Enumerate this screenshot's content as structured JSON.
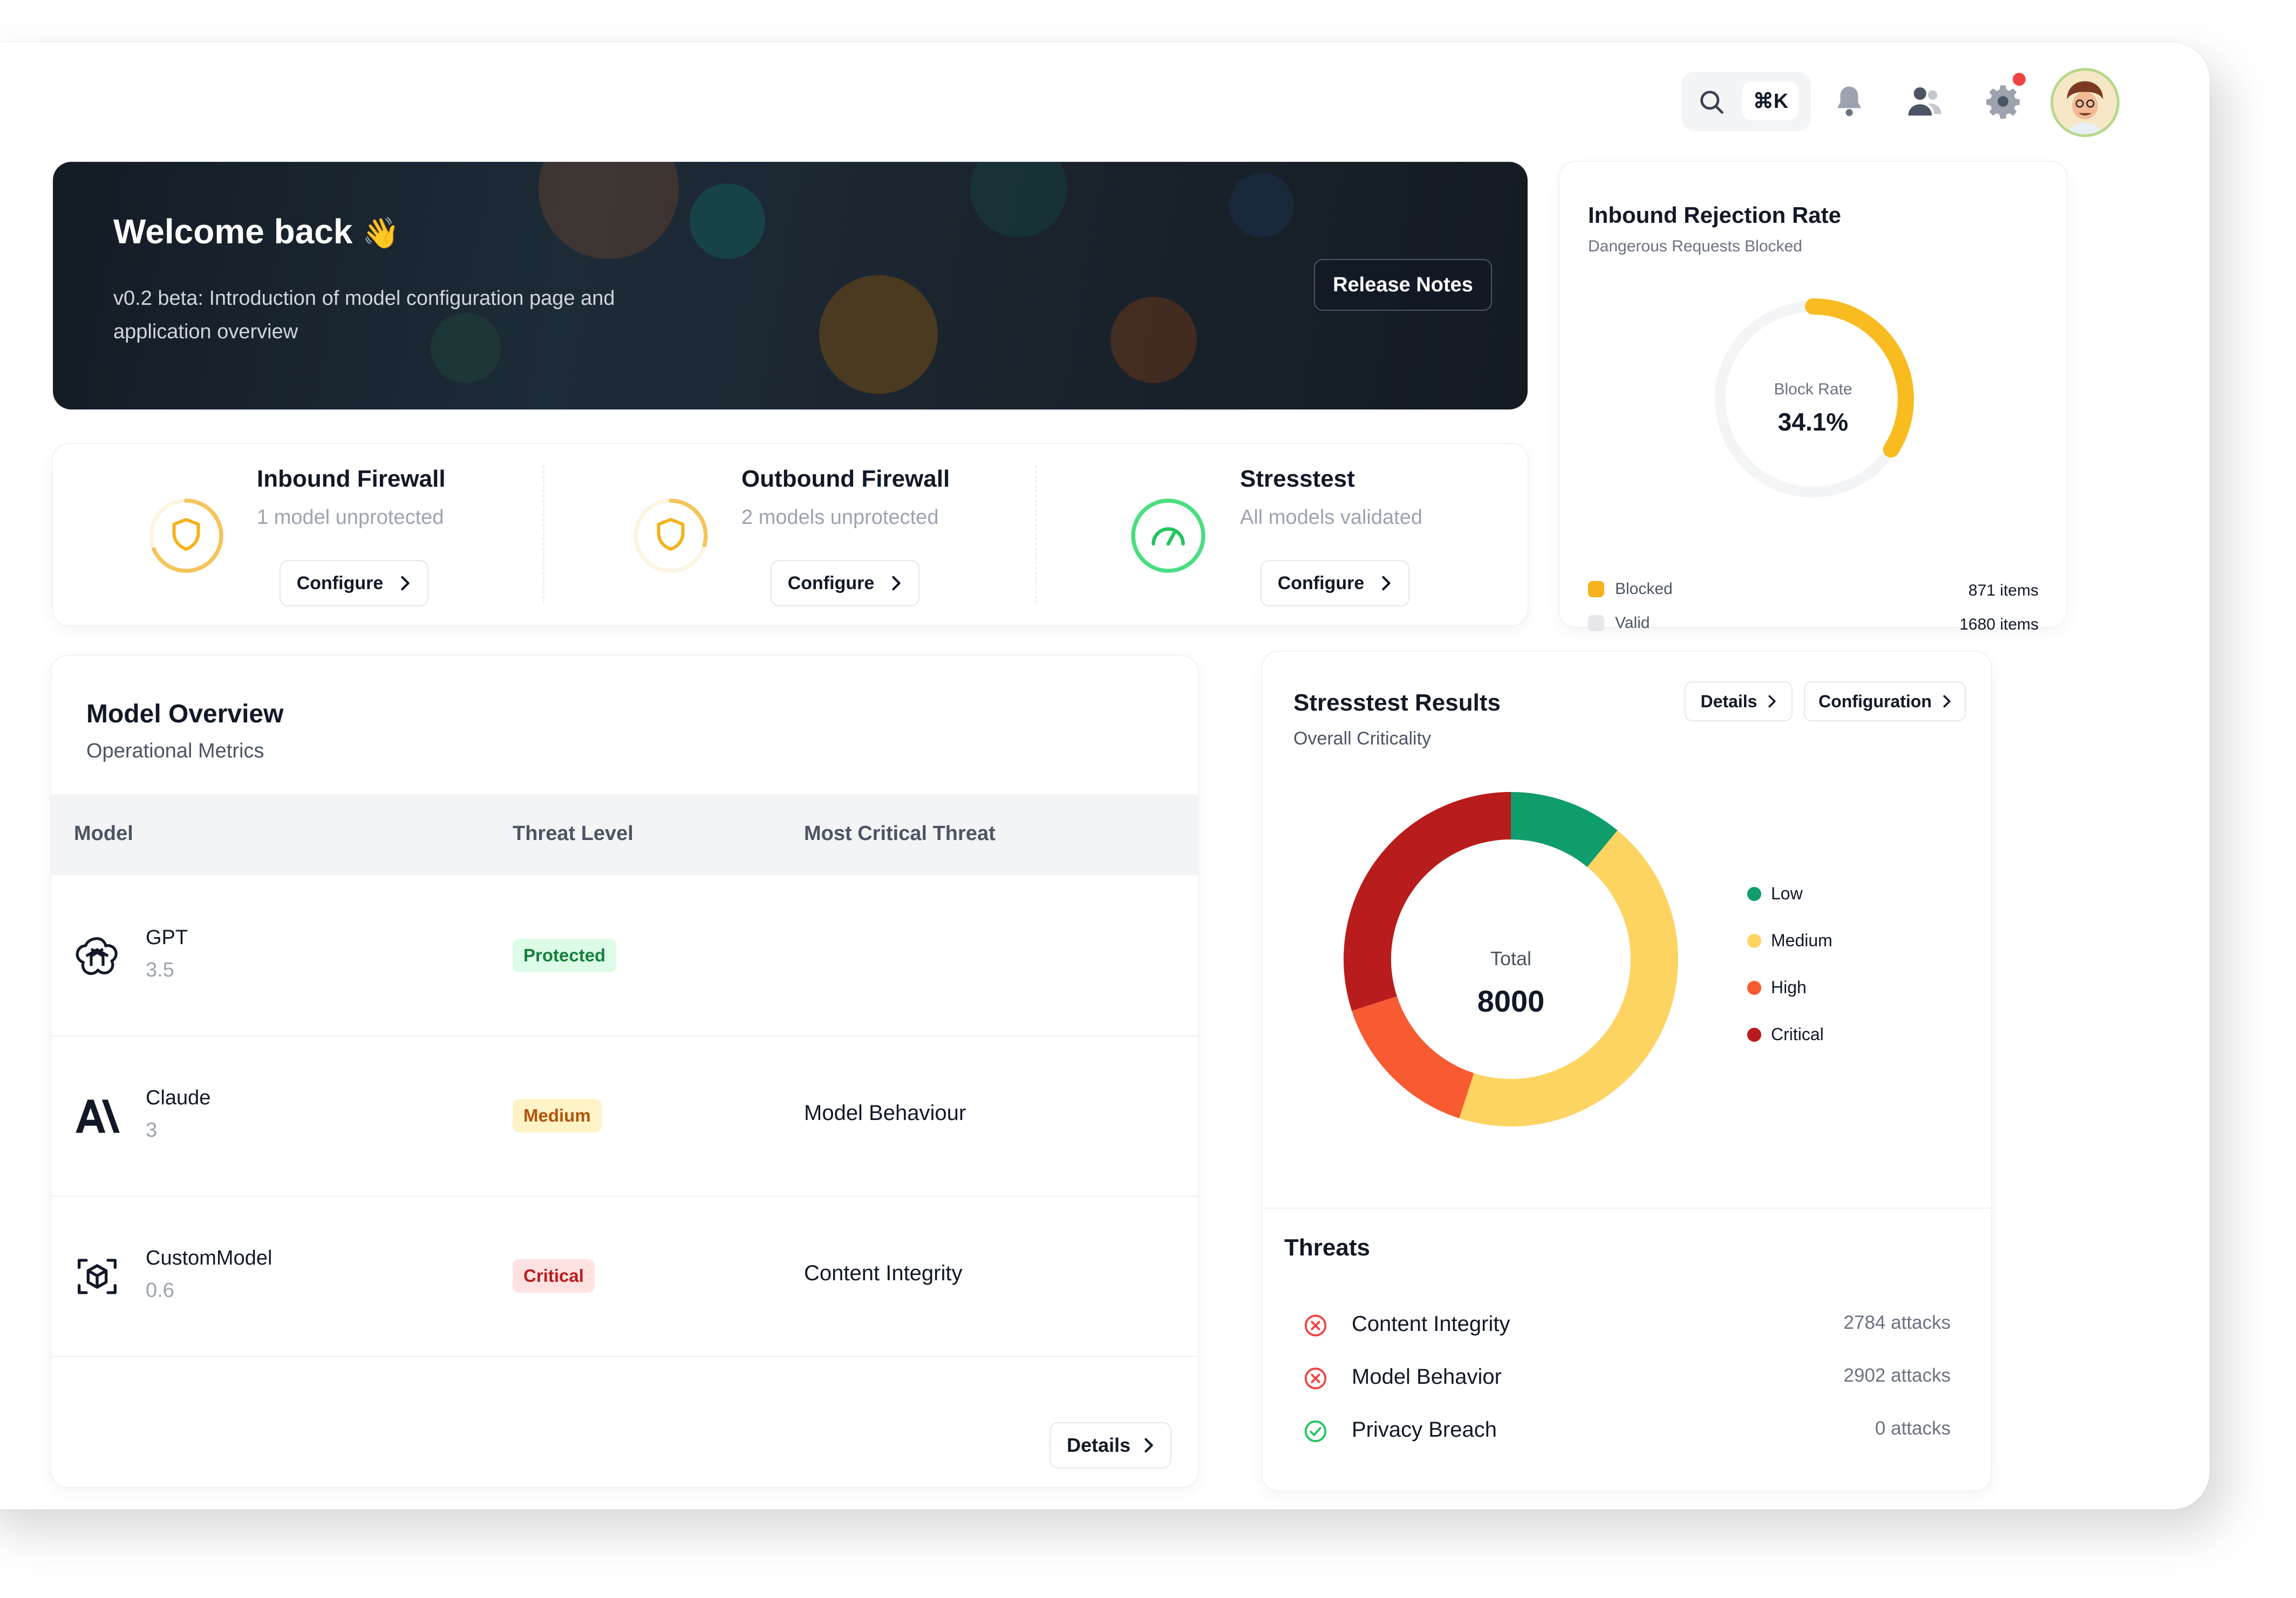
{
  "header": {
    "shortcut": "⌘K",
    "icons": [
      "search-icon",
      "bell-icon",
      "user-icon",
      "gear-icon"
    ]
  },
  "banner": {
    "title": "Welcome back",
    "emoji": "👋",
    "subtitle": "v0.2 beta: Introduction of model configuration page and application overview",
    "release_button": "Release Notes"
  },
  "firewalls": [
    {
      "title": "Inbound Firewall",
      "subtitle": "1 model unprotected",
      "button": "Configure",
      "status_color": "#f5b21a",
      "progress": 0.6
    },
    {
      "title": "Outbound Firewall",
      "subtitle": "2 models unprotected",
      "button": "Configure",
      "status_color": "#f5b21a",
      "progress": 0.35
    },
    {
      "title": "Stresstest",
      "subtitle": "All models validated",
      "button": "Configure",
      "status_color": "#22c55e",
      "progress": 1.0
    }
  ],
  "rejection": {
    "title": "Inbound Rejection Rate",
    "subtitle": "Dangerous Requests Blocked",
    "center_label": "Block Rate",
    "center_value": "34.1%",
    "rate": 0.341,
    "legend": [
      {
        "label": "Blocked",
        "value": "871 items",
        "color": "#f5b21a"
      },
      {
        "label": "Valid",
        "value": "1680 items",
        "color": "#e5e7eb"
      }
    ]
  },
  "model_overview": {
    "title": "Model Overview",
    "subtitle": "Operational Metrics",
    "columns": [
      "Model",
      "Threat Level",
      "Most Critical Threat"
    ],
    "rows": [
      {
        "name": "GPT",
        "version": "3.5",
        "threat_level": "Protected",
        "critical_threat": "",
        "logo": "openai-icon"
      },
      {
        "name": "Claude",
        "version": "3",
        "threat_level": "Medium",
        "critical_threat": "Model Behaviour",
        "logo": "anthropic-icon"
      },
      {
        "name": "CustomModel",
        "version": "0.6",
        "threat_level": "Critical",
        "critical_threat": "Content Integrity",
        "logo": "cube-icon"
      }
    ],
    "details_button": "Details"
  },
  "stresstest": {
    "title": "Stresstest Results",
    "subtitle": "Overall Criticality",
    "details_button": "Details",
    "config_button": "Configuration",
    "total_label": "Total",
    "total_value": "8000",
    "threats_title": "Threats",
    "threats": [
      {
        "name": "Content Integrity",
        "count": "2784 attacks",
        "status": "failed"
      },
      {
        "name": "Model Behavior",
        "count": "2902 attacks",
        "status": "failed"
      },
      {
        "name": "Privacy Breach",
        "count": "0 attacks",
        "status": "passed"
      }
    ]
  },
  "chart_data": {
    "type": "pie",
    "categories": [
      "Low",
      "Medium",
      "High",
      "Critical"
    ],
    "values": [
      0.11,
      0.44,
      0.15,
      0.3
    ],
    "colors": [
      "#0f9d6b",
      "#fdd462",
      "#f85a32",
      "#b91c1c"
    ],
    "legend_position": "right"
  }
}
